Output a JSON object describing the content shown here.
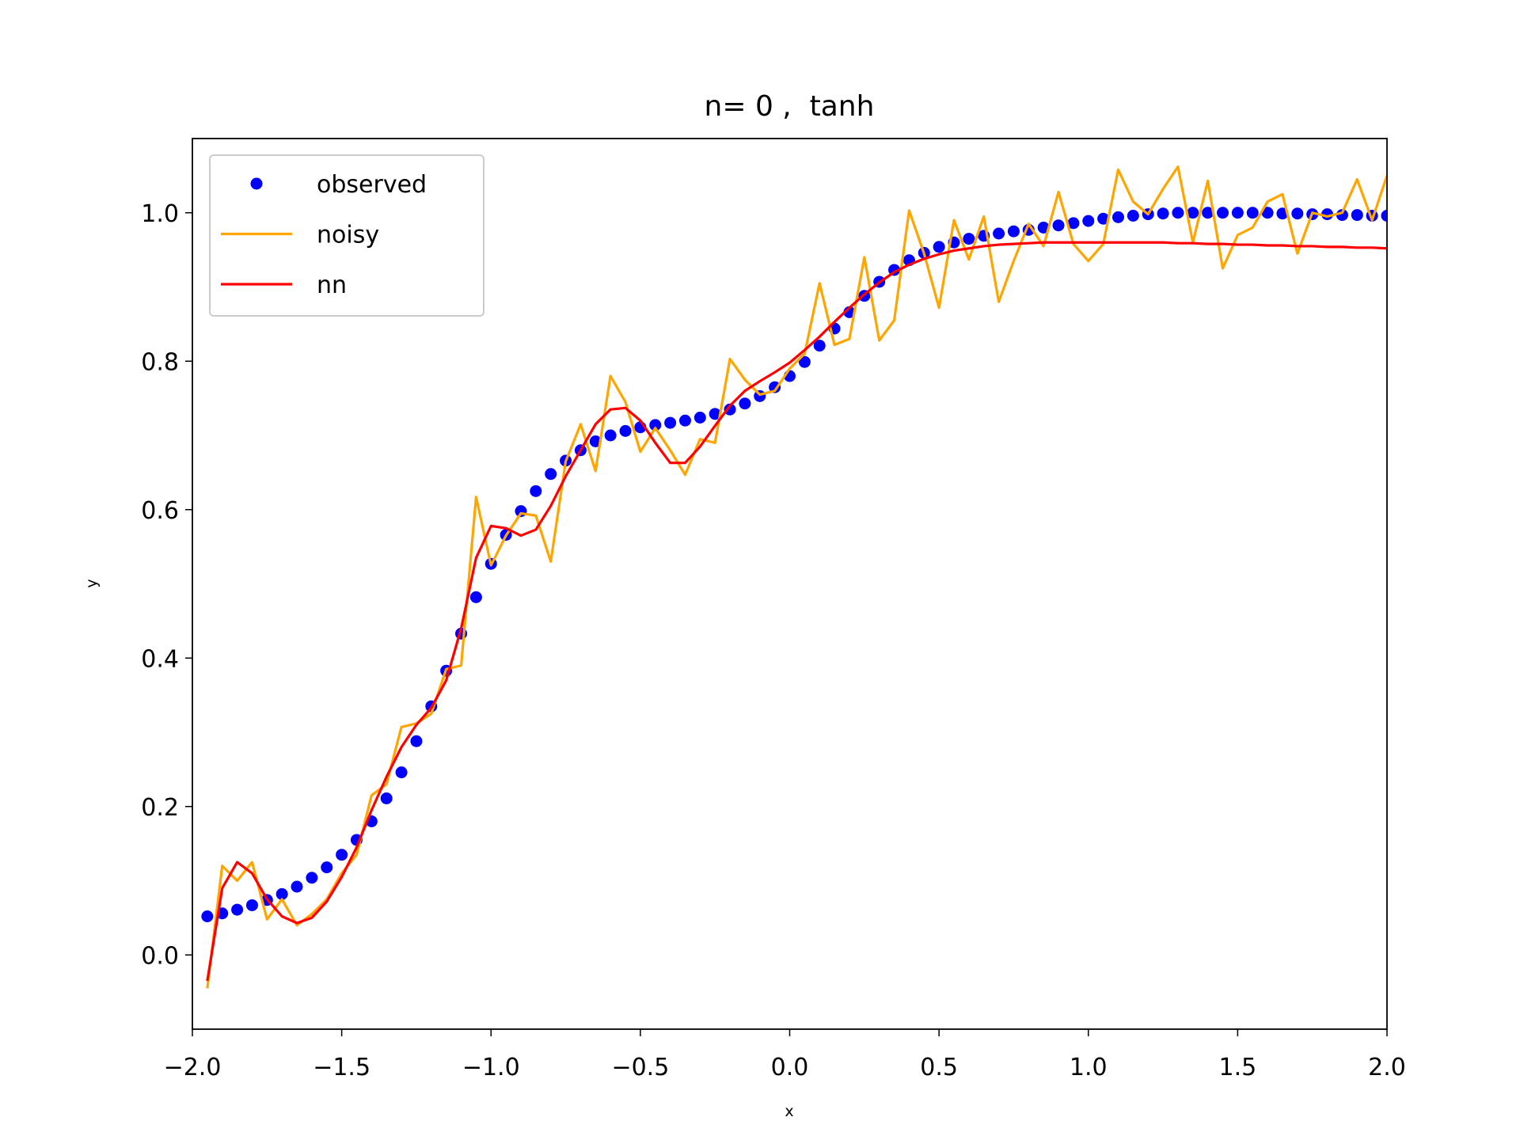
{
  "chart_data": {
    "type": "line",
    "title": "n= 0 ,  tanh",
    "xlabel": "x",
    "ylabel": "y",
    "x": [
      -1.95,
      -1.9,
      -1.85,
      -1.8,
      -1.75,
      -1.7,
      -1.65,
      -1.6,
      -1.55,
      -1.5,
      -1.45,
      -1.4,
      -1.35,
      -1.3,
      -1.25,
      -1.2,
      -1.15,
      -1.1,
      -1.05,
      -1.0,
      -0.95,
      -0.9,
      -0.85,
      -0.8,
      -0.75,
      -0.7,
      -0.65,
      -0.6,
      -0.55,
      -0.5,
      -0.45,
      -0.4,
      -0.35,
      -0.3,
      -0.25,
      -0.2,
      -0.15,
      -0.1,
      -0.05,
      0.0,
      0.05,
      0.1,
      0.15,
      0.2,
      0.25,
      0.3,
      0.35,
      0.4,
      0.45,
      0.5,
      0.55,
      0.6,
      0.65,
      0.7,
      0.75,
      0.8,
      0.85,
      0.9,
      0.95,
      1.0,
      1.05,
      1.1,
      1.15,
      1.2,
      1.25,
      1.3,
      1.35,
      1.4,
      1.45,
      1.5,
      1.55,
      1.6,
      1.65,
      1.7,
      1.75,
      1.8,
      1.85,
      1.9,
      1.95,
      2.0
    ],
    "series": [
      {
        "name": "observed",
        "color": "#0000ff",
        "style": "dots",
        "values": [
          0.052,
          0.056,
          0.061,
          0.067,
          0.074,
          0.082,
          0.092,
          0.104,
          0.118,
          0.135,
          0.155,
          0.18,
          0.211,
          0.246,
          0.288,
          0.335,
          0.383,
          0.433,
          0.482,
          0.527,
          0.566,
          0.598,
          0.625,
          0.648,
          0.666,
          0.68,
          0.692,
          0.7,
          0.706,
          0.711,
          0.714,
          0.717,
          0.72,
          0.724,
          0.729,
          0.735,
          0.743,
          0.753,
          0.765,
          0.78,
          0.799,
          0.821,
          0.844,
          0.866,
          0.888,
          0.907,
          0.923,
          0.936,
          0.946,
          0.954,
          0.96,
          0.965,
          0.969,
          0.972,
          0.975,
          0.977,
          0.98,
          0.983,
          0.986,
          0.989,
          0.992,
          0.994,
          0.996,
          0.998,
          0.999,
          1.0,
          1.0,
          1.0,
          1.0,
          1.0,
          1.0,
          1.0,
          0.999,
          0.999,
          0.998,
          0.998,
          0.997,
          0.997,
          0.996,
          0.996
        ]
      },
      {
        "name": "noisy",
        "color": "#ffa500",
        "style": "line",
        "values": [
          -0.045,
          0.12,
          0.1,
          0.125,
          0.048,
          0.075,
          0.04,
          0.055,
          0.075,
          0.11,
          0.135,
          0.215,
          0.23,
          0.307,
          0.312,
          0.325,
          0.385,
          0.39,
          0.617,
          0.525,
          0.565,
          0.595,
          0.592,
          0.53,
          0.665,
          0.715,
          0.652,
          0.78,
          0.745,
          0.678,
          0.71,
          0.68,
          0.647,
          0.695,
          0.69,
          0.803,
          0.775,
          0.755,
          0.76,
          0.79,
          0.81,
          0.905,
          0.822,
          0.83,
          0.94,
          0.828,
          0.855,
          1.003,
          0.945,
          0.872,
          0.99,
          0.937,
          0.995,
          0.88,
          0.935,
          0.985,
          0.955,
          1.028,
          0.958,
          0.935,
          0.958,
          1.058,
          1.015,
          0.998,
          1.032,
          1.062,
          0.96,
          1.043,
          0.925,
          0.97,
          0.98,
          1.015,
          1.025,
          0.945,
          1.0,
          0.995,
          1.0,
          1.045,
          0.99,
          1.05
        ]
      },
      {
        "name": "nn",
        "color": "#ff0000",
        "style": "line",
        "values": [
          -0.035,
          0.09,
          0.125,
          0.11,
          0.075,
          0.052,
          0.043,
          0.05,
          0.072,
          0.105,
          0.145,
          0.195,
          0.24,
          0.28,
          0.31,
          0.333,
          0.37,
          0.44,
          0.535,
          0.578,
          0.575,
          0.565,
          0.573,
          0.605,
          0.645,
          0.68,
          0.715,
          0.735,
          0.737,
          0.72,
          0.69,
          0.663,
          0.663,
          0.685,
          0.713,
          0.74,
          0.76,
          0.773,
          0.785,
          0.798,
          0.815,
          0.833,
          0.853,
          0.872,
          0.89,
          0.906,
          0.92,
          0.93,
          0.938,
          0.944,
          0.949,
          0.952,
          0.955,
          0.957,
          0.958,
          0.959,
          0.96,
          0.96,
          0.96,
          0.96,
          0.96,
          0.96,
          0.96,
          0.96,
          0.96,
          0.959,
          0.959,
          0.958,
          0.958,
          0.957,
          0.957,
          0.956,
          0.956,
          0.955,
          0.955,
          0.954,
          0.954,
          0.953,
          0.953,
          0.952
        ]
      }
    ],
    "xlim": [
      -2,
      2
    ],
    "ylim": [
      -0.1,
      1.1
    ],
    "xticks": [
      {
        "value": -2,
        "label": "−2.0"
      },
      {
        "value": -1.5,
        "label": "−1.5"
      },
      {
        "value": -1,
        "label": "−1.0"
      },
      {
        "value": -0.5,
        "label": "−0.5"
      },
      {
        "value": 0,
        "label": "0.0"
      },
      {
        "value": 0.5,
        "label": "0.5"
      },
      {
        "value": 1,
        "label": "1.0"
      },
      {
        "value": 1.5,
        "label": "1.5"
      },
      {
        "value": 2,
        "label": "2.0"
      }
    ],
    "yticks": [
      {
        "value": 0,
        "label": "0.0"
      },
      {
        "value": 0.2,
        "label": "0.2"
      },
      {
        "value": 0.4,
        "label": "0.4"
      },
      {
        "value": 0.6,
        "label": "0.6"
      },
      {
        "value": 0.8,
        "label": "0.8"
      },
      {
        "value": 1,
        "label": "1.0"
      }
    ],
    "grid": false,
    "legend": "upper left"
  }
}
